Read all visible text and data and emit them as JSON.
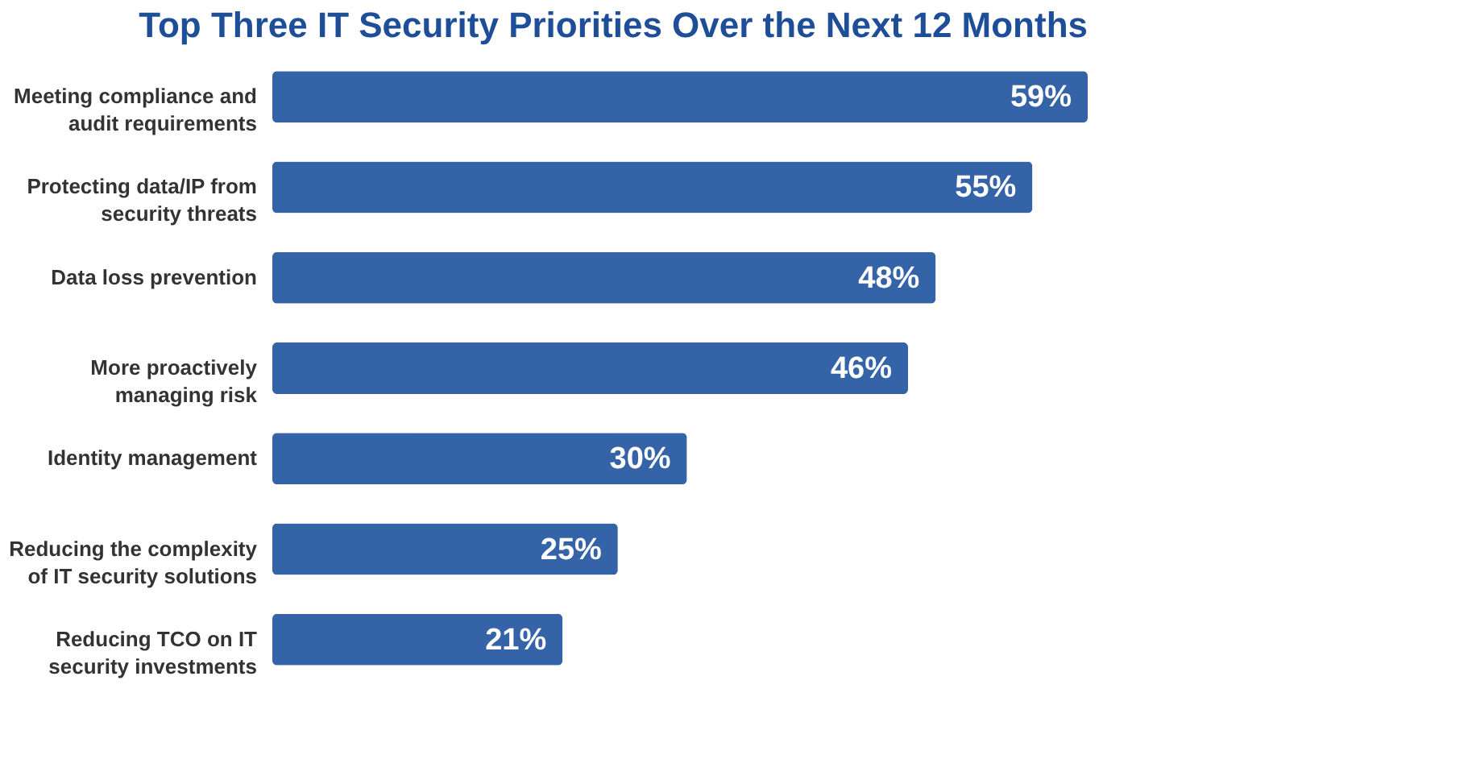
{
  "chart_data": {
    "type": "bar",
    "orientation": "horizontal",
    "title": "Top Three IT Security Priorities Over the Next 12 Months",
    "categories": [
      "Meeting compliance and audit requirements",
      "Protecting data/IP from security threats",
      "Data loss prevention",
      "More proactively managing risk",
      "Identity management",
      "Reducing the complexity of IT security solutions",
      "Reducing TCO on IT security investments"
    ],
    "values": [
      59,
      55,
      48,
      46,
      30,
      25,
      21
    ],
    "value_labels": [
      "59%",
      "55%",
      "48%",
      "46%",
      "30%",
      "25%",
      "21%"
    ],
    "color": "#3563a8",
    "tick_labels": "y"
  }
}
